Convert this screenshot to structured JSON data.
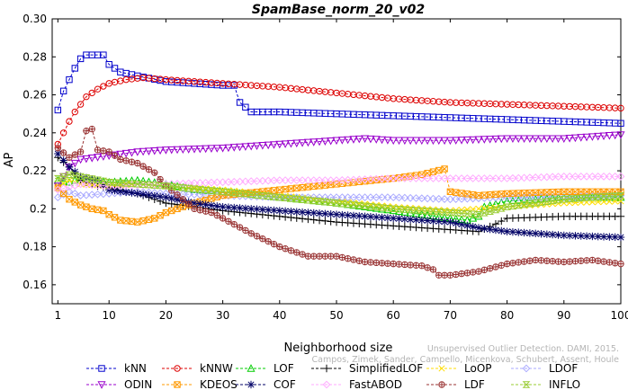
{
  "chart_data": {
    "type": "line",
    "title": "SpamBase_norm_20_v02",
    "xlabel": "Neighborhood size",
    "ylabel": "AP",
    "xlim": [
      0,
      100
    ],
    "ylim": [
      0.15,
      0.3
    ],
    "xticks": [
      1,
      10,
      20,
      30,
      40,
      50,
      60,
      70,
      80,
      90,
      100
    ],
    "yticks": [
      0.16,
      0.18,
      0.2,
      0.22,
      0.24,
      0.26,
      0.28,
      0.3
    ],
    "ytick_labels": [
      "0.16",
      "0.18",
      "0.2",
      "0.22",
      "0.24",
      "0.26",
      "0.28",
      "0.30"
    ],
    "grid": false,
    "legend_placement": "bottom",
    "watermark": [
      "Unsupervised Outlier Detection. DAMI, 2015.",
      "Campos, Zimek, Sander, Campello, Micenkova, Schubert, Assent, Houle"
    ],
    "series": [
      {
        "name": "kNN",
        "color": "#0000cc",
        "marker": "square",
        "points": [
          [
            1,
            0.252
          ],
          [
            2,
            0.262
          ],
          [
            3,
            0.268
          ],
          [
            4,
            0.274
          ],
          [
            5,
            0.279
          ],
          [
            6,
            0.281
          ],
          [
            7,
            0.281
          ],
          [
            8,
            0.281
          ],
          [
            9,
            0.281
          ],
          [
            10,
            0.276
          ],
          [
            12,
            0.272
          ],
          [
            15,
            0.27
          ],
          [
            20,
            0.267
          ],
          [
            25,
            0.266
          ],
          [
            30,
            0.265
          ],
          [
            32,
            0.265
          ],
          [
            33,
            0.256
          ],
          [
            35,
            0.251
          ],
          [
            40,
            0.251
          ],
          [
            50,
            0.25
          ],
          [
            60,
            0.249
          ],
          [
            70,
            0.248
          ],
          [
            80,
            0.247
          ],
          [
            90,
            0.246
          ],
          [
            100,
            0.245
          ]
        ]
      },
      {
        "name": "kNNW",
        "color": "#dd0000",
        "marker": "circle",
        "points": [
          [
            1,
            0.234
          ],
          [
            2,
            0.24
          ],
          [
            3,
            0.246
          ],
          [
            4,
            0.251
          ],
          [
            5,
            0.255
          ],
          [
            6,
            0.259
          ],
          [
            8,
            0.263
          ],
          [
            10,
            0.266
          ],
          [
            13,
            0.268
          ],
          [
            16,
            0.269
          ],
          [
            20,
            0.268
          ],
          [
            30,
            0.266
          ],
          [
            40,
            0.264
          ],
          [
            50,
            0.261
          ],
          [
            60,
            0.258
          ],
          [
            70,
            0.256
          ],
          [
            80,
            0.255
          ],
          [
            90,
            0.254
          ],
          [
            100,
            0.253
          ]
        ]
      },
      {
        "name": "LOF",
        "color": "#00cc00",
        "marker": "triangle-up",
        "points": [
          [
            1,
            0.215
          ],
          [
            3,
            0.214
          ],
          [
            5,
            0.216
          ],
          [
            10,
            0.214
          ],
          [
            15,
            0.215
          ],
          [
            20,
            0.213
          ],
          [
            25,
            0.21
          ],
          [
            30,
            0.209
          ],
          [
            40,
            0.206
          ],
          [
            50,
            0.203
          ],
          [
            60,
            0.199
          ],
          [
            65,
            0.197
          ],
          [
            70,
            0.195
          ],
          [
            73,
            0.194
          ],
          [
            75,
            0.196
          ],
          [
            76,
            0.201
          ],
          [
            80,
            0.204
          ],
          [
            90,
            0.206
          ],
          [
            100,
            0.206
          ]
        ]
      },
      {
        "name": "SimplifiedLOF",
        "color": "#000000",
        "marker": "plus",
        "points": [
          [
            1,
            0.227
          ],
          [
            3,
            0.222
          ],
          [
            5,
            0.215
          ],
          [
            8,
            0.212
          ],
          [
            10,
            0.211
          ],
          [
            15,
            0.208
          ],
          [
            20,
            0.203
          ],
          [
            25,
            0.201
          ],
          [
            30,
            0.199
          ],
          [
            40,
            0.196
          ],
          [
            50,
            0.193
          ],
          [
            60,
            0.191
          ],
          [
            70,
            0.189
          ],
          [
            75,
            0.188
          ],
          [
            78,
            0.192
          ],
          [
            80,
            0.195
          ],
          [
            90,
            0.196
          ],
          [
            100,
            0.196
          ]
        ]
      },
      {
        "name": "LoOP",
        "color": "#ffdd00",
        "marker": "x",
        "points": [
          [
            1,
            0.212
          ],
          [
            3,
            0.215
          ],
          [
            5,
            0.213
          ],
          [
            10,
            0.212
          ],
          [
            15,
            0.213
          ],
          [
            20,
            0.212
          ],
          [
            30,
            0.21
          ],
          [
            40,
            0.207
          ],
          [
            50,
            0.204
          ],
          [
            60,
            0.201
          ],
          [
            70,
            0.199
          ],
          [
            80,
            0.201
          ],
          [
            90,
            0.203
          ],
          [
            100,
            0.204
          ]
        ]
      },
      {
        "name": "LDOF",
        "color": "#aaaaff",
        "marker": "diamond",
        "points": [
          [
            1,
            0.206
          ],
          [
            3,
            0.209
          ],
          [
            5,
            0.207
          ],
          [
            10,
            0.208
          ],
          [
            15,
            0.209
          ],
          [
            20,
            0.208
          ],
          [
            30,
            0.207
          ],
          [
            40,
            0.206
          ],
          [
            50,
            0.206
          ],
          [
            60,
            0.206
          ],
          [
            70,
            0.205
          ],
          [
            80,
            0.206
          ],
          [
            90,
            0.206
          ],
          [
            100,
            0.207
          ]
        ]
      },
      {
        "name": "ODIN",
        "color": "#9900cc",
        "marker": "triangle-down",
        "points": [
          [
            1,
            0.212
          ],
          [
            3,
            0.222
          ],
          [
            5,
            0.226
          ],
          [
            10,
            0.228
          ],
          [
            15,
            0.23
          ],
          [
            20,
            0.231
          ],
          [
            30,
            0.232
          ],
          [
            40,
            0.234
          ],
          [
            50,
            0.236
          ],
          [
            55,
            0.237
          ],
          [
            60,
            0.236
          ],
          [
            70,
            0.236
          ],
          [
            80,
            0.237
          ],
          [
            90,
            0.237
          ],
          [
            100,
            0.239
          ]
        ]
      },
      {
        "name": "KDEOS",
        "color": "#ff9900",
        "marker": "square-x",
        "points": [
          [
            1,
            0.211
          ],
          [
            3,
            0.205
          ],
          [
            5,
            0.202
          ],
          [
            7,
            0.2
          ],
          [
            9,
            0.199
          ],
          [
            10,
            0.197
          ],
          [
            12,
            0.194
          ],
          [
            15,
            0.193
          ],
          [
            18,
            0.195
          ],
          [
            20,
            0.198
          ],
          [
            25,
            0.203
          ],
          [
            30,
            0.207
          ],
          [
            40,
            0.21
          ],
          [
            50,
            0.213
          ],
          [
            60,
            0.216
          ],
          [
            65,
            0.218
          ],
          [
            69,
            0.221
          ],
          [
            70,
            0.209
          ],
          [
            75,
            0.207
          ],
          [
            80,
            0.208
          ],
          [
            90,
            0.209
          ],
          [
            100,
            0.209
          ]
        ]
      },
      {
        "name": "COF",
        "color": "#000066",
        "marker": "star",
        "points": [
          [
            1,
            0.229
          ],
          [
            3,
            0.222
          ],
          [
            5,
            0.217
          ],
          [
            8,
            0.215
          ],
          [
            10,
            0.21
          ],
          [
            15,
            0.208
          ],
          [
            20,
            0.206
          ],
          [
            25,
            0.203
          ],
          [
            30,
            0.201
          ],
          [
            40,
            0.199
          ],
          [
            50,
            0.197
          ],
          [
            60,
            0.195
          ],
          [
            70,
            0.193
          ],
          [
            75,
            0.19
          ],
          [
            80,
            0.188
          ],
          [
            90,
            0.186
          ],
          [
            100,
            0.185
          ]
        ]
      },
      {
        "name": "FastABOD",
        "color": "#ffaaff",
        "marker": "diamond",
        "points": [
          [
            1,
            0.21
          ],
          [
            5,
            0.213
          ],
          [
            10,
            0.212
          ],
          [
            20,
            0.213
          ],
          [
            30,
            0.214
          ],
          [
            40,
            0.215
          ],
          [
            50,
            0.215
          ],
          [
            60,
            0.216
          ],
          [
            70,
            0.216
          ],
          [
            80,
            0.216
          ],
          [
            90,
            0.217
          ],
          [
            100,
            0.217
          ]
        ]
      },
      {
        "name": "LDF",
        "color": "#993333",
        "marker": "circle-plus",
        "points": [
          [
            1,
            0.232
          ],
          [
            3,
            0.227
          ],
          [
            5,
            0.23
          ],
          [
            6,
            0.241
          ],
          [
            7,
            0.242
          ],
          [
            8,
            0.231
          ],
          [
            10,
            0.23
          ],
          [
            12,
            0.226
          ],
          [
            15,
            0.224
          ],
          [
            18,
            0.219
          ],
          [
            20,
            0.212
          ],
          [
            23,
            0.205
          ],
          [
            25,
            0.2
          ],
          [
            28,
            0.198
          ],
          [
            30,
            0.195
          ],
          [
            35,
            0.187
          ],
          [
            40,
            0.18
          ],
          [
            45,
            0.175
          ],
          [
            50,
            0.175
          ],
          [
            55,
            0.172
          ],
          [
            60,
            0.171
          ],
          [
            65,
            0.17
          ],
          [
            67,
            0.168
          ],
          [
            68,
            0.165
          ],
          [
            70,
            0.165
          ],
          [
            75,
            0.167
          ],
          [
            80,
            0.171
          ],
          [
            85,
            0.173
          ],
          [
            90,
            0.172
          ],
          [
            95,
            0.173
          ],
          [
            100,
            0.171
          ]
        ]
      },
      {
        "name": "INFLO",
        "color": "#99cc33",
        "marker": "hourglass",
        "points": [
          [
            1,
            0.216
          ],
          [
            3,
            0.218
          ],
          [
            5,
            0.217
          ],
          [
            10,
            0.214
          ],
          [
            15,
            0.213
          ],
          [
            20,
            0.212
          ],
          [
            30,
            0.209
          ],
          [
            40,
            0.206
          ],
          [
            50,
            0.203
          ],
          [
            60,
            0.2
          ],
          [
            70,
            0.198
          ],
          [
            75,
            0.197
          ],
          [
            80,
            0.201
          ],
          [
            90,
            0.205
          ],
          [
            100,
            0.207
          ]
        ]
      }
    ]
  }
}
